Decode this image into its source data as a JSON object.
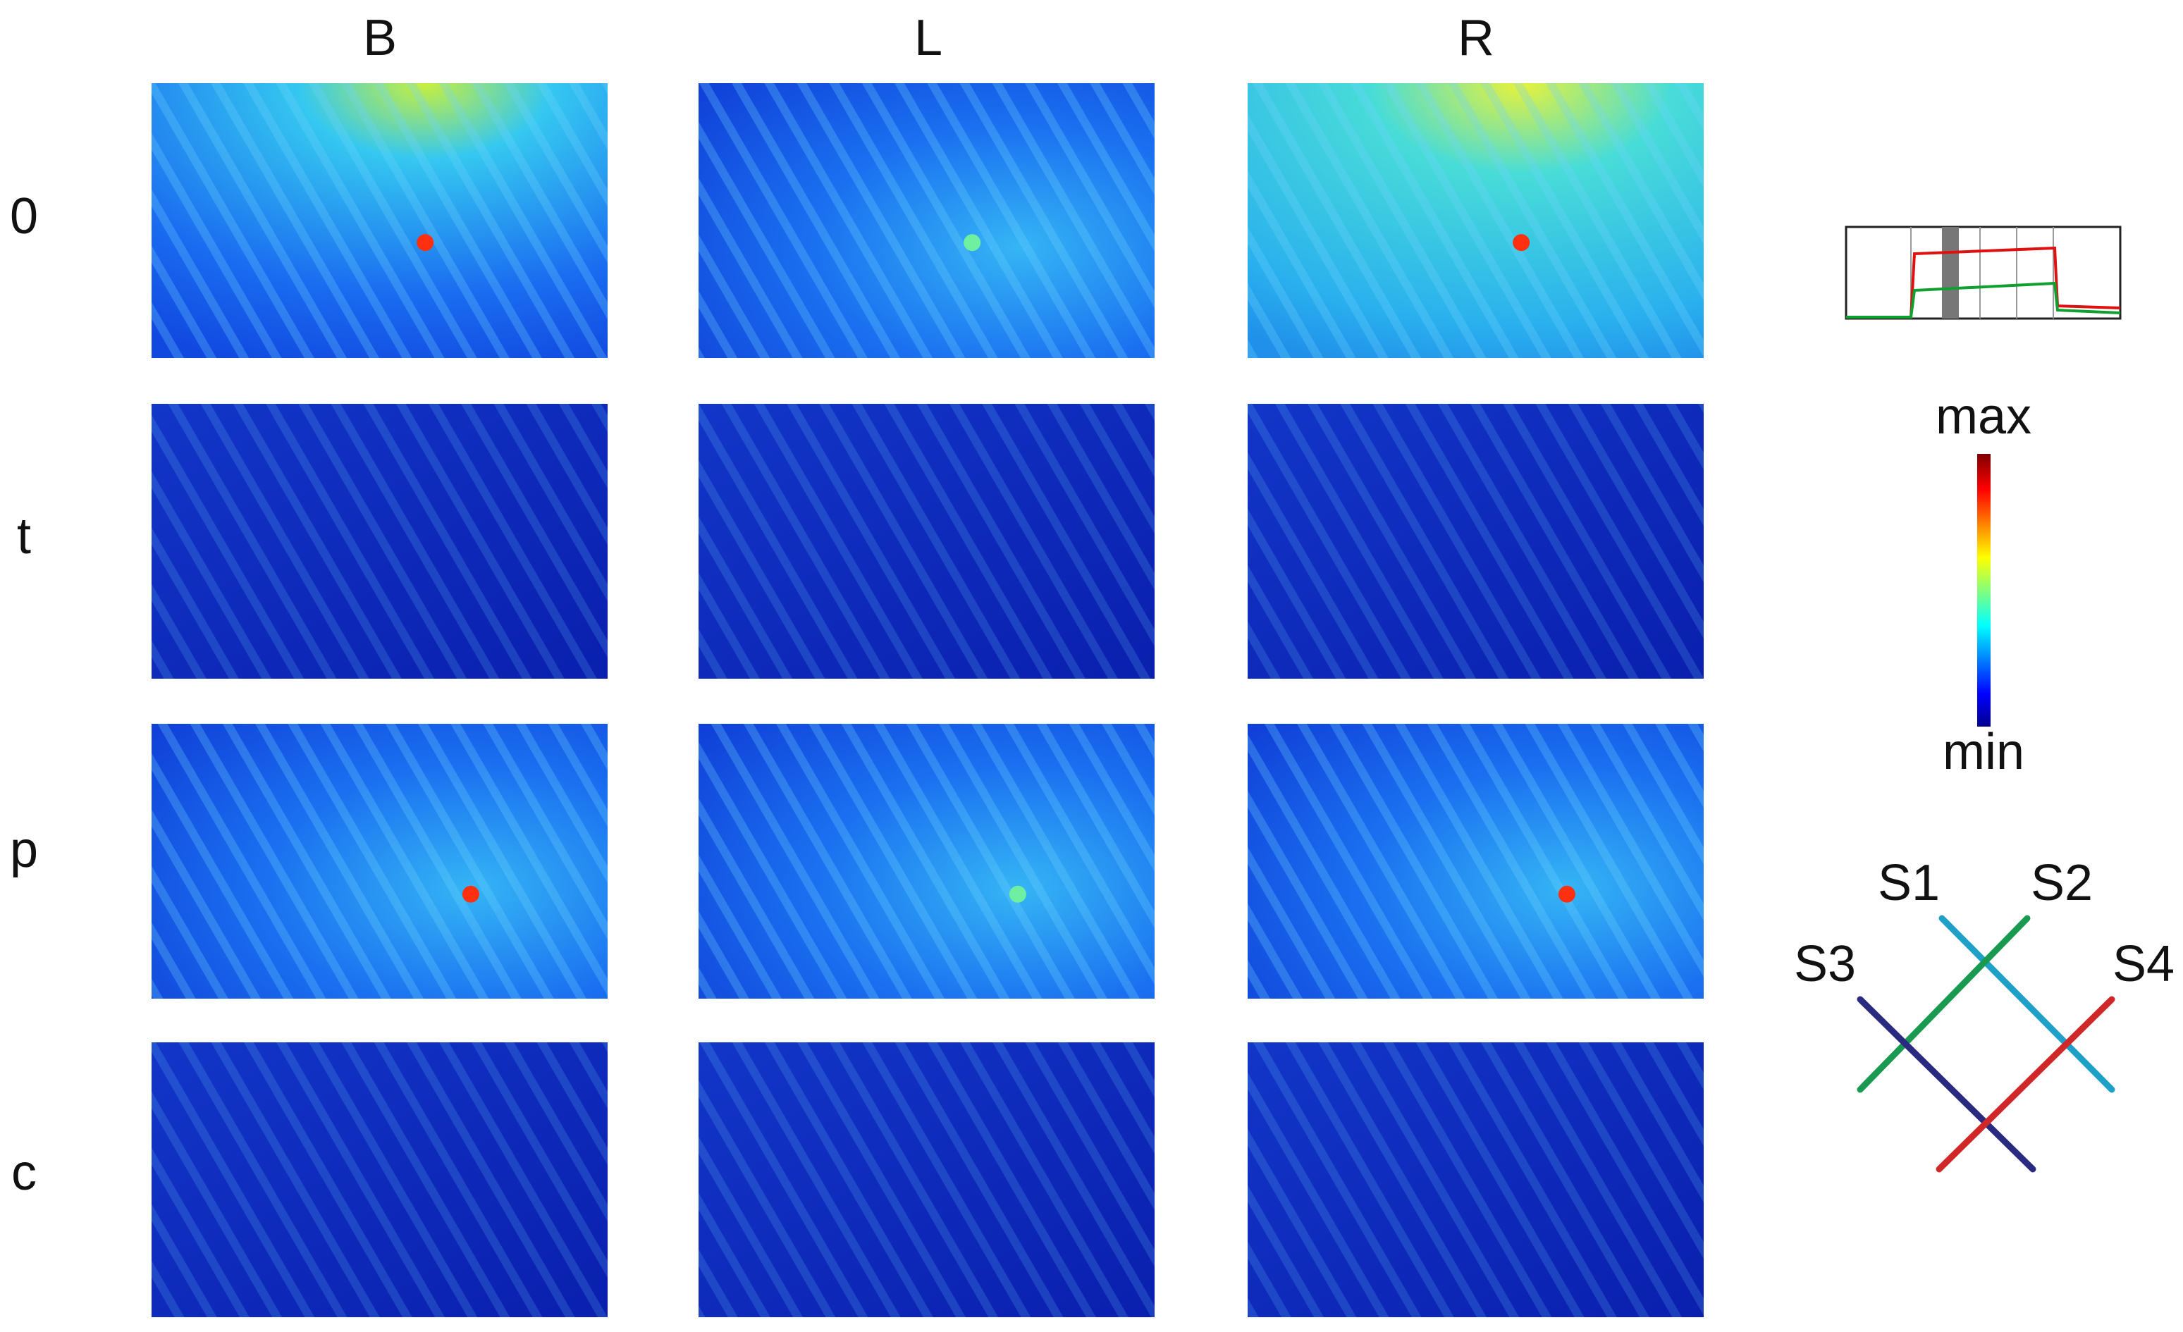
{
  "columns": [
    "B",
    "L",
    "R"
  ],
  "rows": [
    "0",
    "t",
    "p",
    "c"
  ],
  "colorbar": {
    "max": "max",
    "min": "min"
  },
  "sensors": [
    "S1",
    "S2",
    "S3",
    "S4"
  ]
}
